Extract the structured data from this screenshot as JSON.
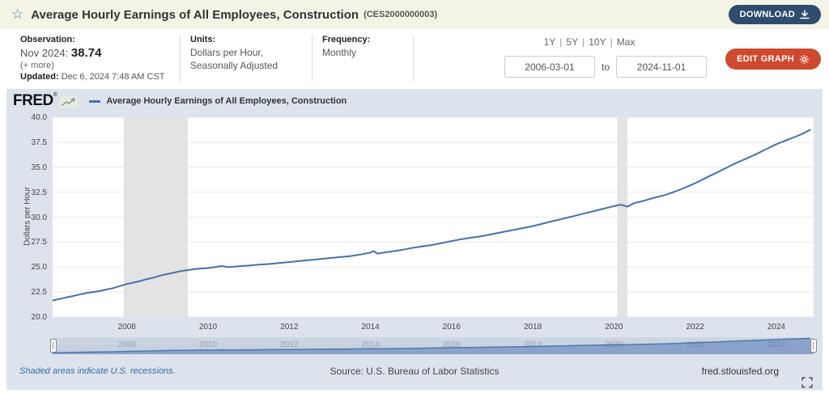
{
  "header": {
    "title": "Average Hourly Earnings of All Employees, Construction",
    "series_id": "(CES2000000003)",
    "download_label": "DOWNLOAD"
  },
  "info_bar": {
    "observation": {
      "label": "Observation:",
      "date": "Nov 2024:",
      "value": "38.74",
      "more": "(+ more)",
      "updated_label": "Updated:",
      "updated": "Dec 6, 2024 7:48 AM CST"
    },
    "units": {
      "label": "Units:",
      "line1": "Dollars per Hour,",
      "line2": "Seasonally Adjusted"
    },
    "frequency": {
      "label": "Frequency:",
      "value": "Monthly"
    },
    "ranges": [
      "1Y",
      "5Y",
      "10Y",
      "Max"
    ],
    "date_from": "2006-03-01",
    "to_label": "to",
    "date_to": "2024-11-01",
    "edit_graph_label": "EDIT GRAPH"
  },
  "graph": {
    "brand": "FRED",
    "brand_mark": "®",
    "legend": "Average Hourly Earnings of All Employees, Construction",
    "ylabel": "Dollars per Hour"
  },
  "footer": {
    "recession_note": "Shaded areas indicate U.S. recessions.",
    "source": "Source: U.S. Bureau of Labor Statistics",
    "site": "fred.stlouisfed.org"
  },
  "chart_data": {
    "type": "line",
    "title": "Average Hourly Earnings of All Employees, Construction",
    "series_id": "CES2000000003",
    "ylabel": "Dollars per Hour",
    "xlabel": "",
    "ylim": [
      20.0,
      40.0
    ],
    "xlim": [
      2006.17,
      2024.92
    ],
    "y_ticks": [
      20.0,
      22.5,
      25.0,
      27.5,
      30.0,
      32.5,
      35.0,
      37.5,
      40.0
    ],
    "x_ticks": [
      2008,
      2010,
      2012,
      2014,
      2016,
      2018,
      2020,
      2022,
      2024
    ],
    "grid": true,
    "legend_position": "top",
    "recessions": [
      [
        2007.92,
        2009.5
      ],
      [
        2020.08,
        2020.33
      ]
    ],
    "last_observation": {
      "date": "Nov 2024",
      "value": 38.74
    },
    "colors": {
      "line": "#4572a7",
      "grid": "#e9e9e9",
      "recession": "#e3e3e3",
      "slider_fill": "#8ba3ca",
      "slider_line": "#4e79ad"
    },
    "x": [
      2006.17,
      2006.33,
      2006.5,
      2006.67,
      2006.83,
      2007.0,
      2007.17,
      2007.33,
      2007.5,
      2007.67,
      2007.83,
      2008.0,
      2008.17,
      2008.33,
      2008.5,
      2008.67,
      2008.83,
      2009.0,
      2009.17,
      2009.33,
      2009.5,
      2009.67,
      2009.83,
      2010.0,
      2010.17,
      2010.33,
      2010.5,
      2010.67,
      2010.83,
      2011.0,
      2011.25,
      2011.5,
      2011.75,
      2012.0,
      2012.25,
      2012.5,
      2012.75,
      2013.0,
      2013.25,
      2013.5,
      2013.75,
      2014.0,
      2014.08,
      2014.17,
      2014.33,
      2014.5,
      2014.75,
      2015.0,
      2015.25,
      2015.5,
      2015.75,
      2016.0,
      2016.25,
      2016.5,
      2016.75,
      2017.0,
      2017.25,
      2017.5,
      2017.75,
      2018.0,
      2018.25,
      2018.5,
      2018.75,
      2019.0,
      2019.25,
      2019.5,
      2019.75,
      2020.0,
      2020.17,
      2020.33,
      2020.5,
      2020.75,
      2021.0,
      2021.25,
      2021.5,
      2021.75,
      2022.0,
      2022.25,
      2022.5,
      2022.75,
      2023.0,
      2023.25,
      2023.5,
      2023.75,
      2024.0,
      2024.25,
      2024.5,
      2024.67,
      2024.83
    ],
    "y": [
      21.65,
      21.8,
      21.95,
      22.1,
      22.25,
      22.4,
      22.5,
      22.6,
      22.75,
      22.9,
      23.1,
      23.3,
      23.45,
      23.6,
      23.8,
      23.95,
      24.15,
      24.3,
      24.45,
      24.6,
      24.7,
      24.8,
      24.85,
      24.9,
      25.0,
      25.1,
      25.0,
      25.05,
      25.1,
      25.15,
      25.25,
      25.3,
      25.4,
      25.5,
      25.6,
      25.7,
      25.8,
      25.9,
      26.0,
      26.1,
      26.25,
      26.45,
      26.6,
      26.35,
      26.45,
      26.55,
      26.7,
      26.9,
      27.05,
      27.2,
      27.4,
      27.6,
      27.8,
      27.95,
      28.1,
      28.3,
      28.5,
      28.7,
      28.9,
      29.1,
      29.35,
      29.6,
      29.85,
      30.1,
      30.35,
      30.6,
      30.85,
      31.1,
      31.25,
      31.05,
      31.4,
      31.65,
      31.95,
      32.2,
      32.55,
      32.95,
      33.4,
      33.9,
      34.4,
      34.9,
      35.4,
      35.85,
      36.3,
      36.8,
      37.3,
      37.7,
      38.1,
      38.4,
      38.74
    ]
  }
}
